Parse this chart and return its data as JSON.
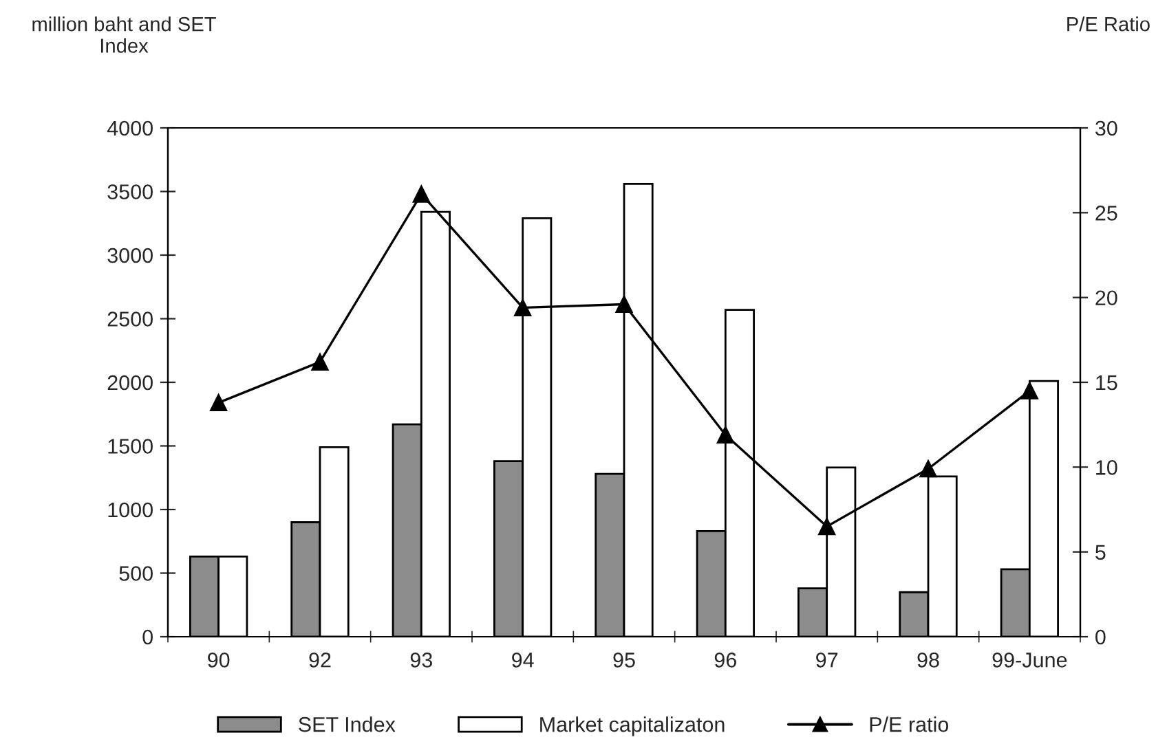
{
  "chart_data": {
    "type": "bar",
    "ylabel": "million baht and SET\nIndex",
    "y2label": "P/E Ratio",
    "categories": [
      "90",
      "92",
      "93",
      "94",
      "95",
      "96",
      "97",
      "98",
      "99-June"
    ],
    "series": [
      {
        "name": "SET Index",
        "color": "#8c8c8c",
        "values": [
          630,
          900,
          1670,
          1380,
          1280,
          830,
          380,
          350,
          530
        ]
      },
      {
        "name": "Market capitalizaton",
        "color": "#ffffff",
        "values": [
          630,
          1490,
          3340,
          3290,
          3560,
          2570,
          1330,
          1260,
          2010
        ]
      },
      {
        "name": "P/E ratio",
        "type": "line",
        "axis": "y2",
        "color": "#000000",
        "marker": "triangle",
        "values": [
          13.8,
          16.2,
          26.1,
          19.4,
          19.6,
          11.9,
          6.5,
          9.9,
          14.5
        ]
      }
    ],
    "ylim": [
      0,
      4000
    ],
    "yticks": [
      0,
      500,
      1000,
      1500,
      2000,
      2500,
      3000,
      3500,
      4000
    ],
    "y2lim": [
      0,
      30
    ],
    "y2ticks": [
      0,
      5,
      10,
      15,
      20,
      25,
      30
    ],
    "grid": false,
    "legend": "bottom"
  }
}
